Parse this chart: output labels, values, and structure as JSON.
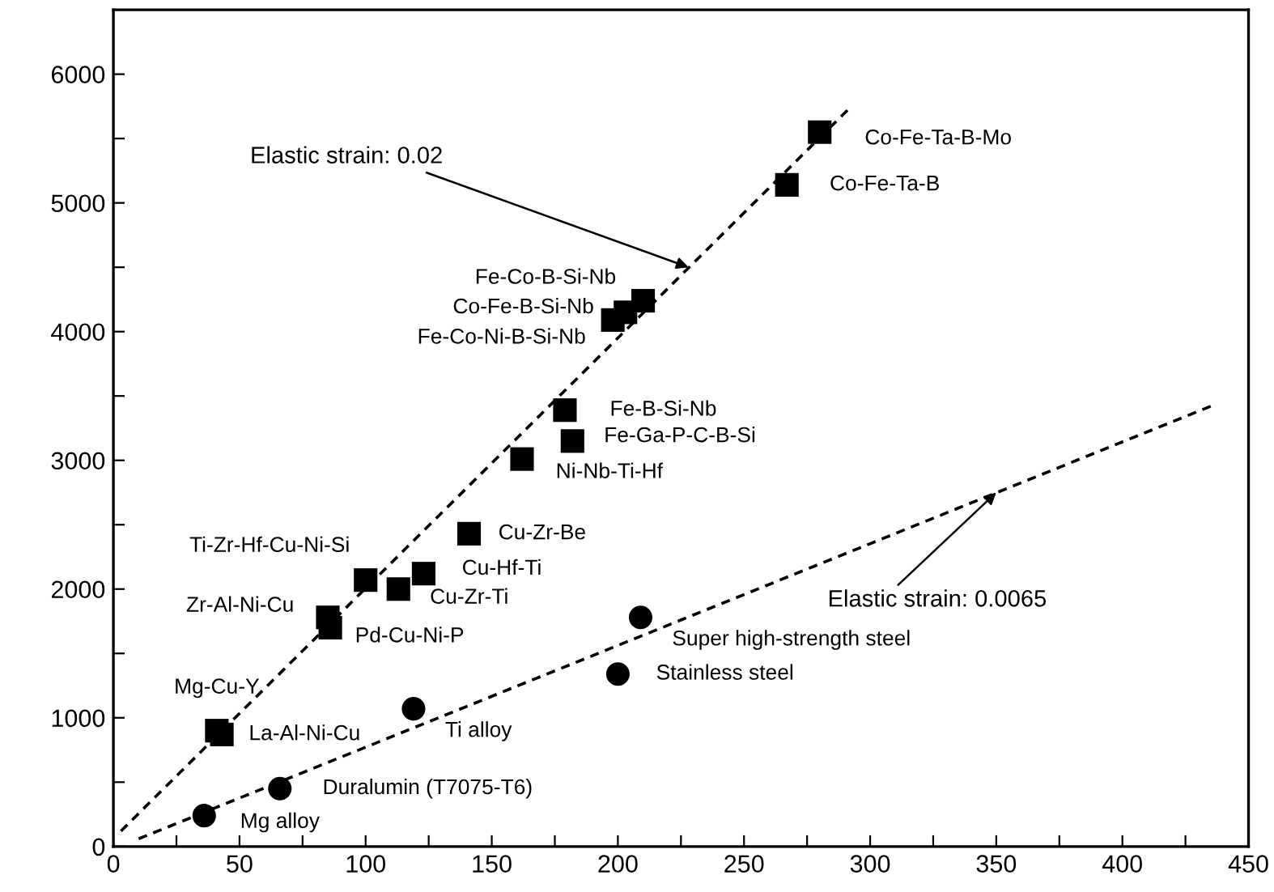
{
  "chart_data": {
    "type": "scatter",
    "xlim": [
      0,
      450
    ],
    "ylim": [
      0,
      6500
    ],
    "xticks": [
      0,
      {
        "value": 25,
        "label": null
      },
      50,
      {
        "value": 75,
        "label": null
      },
      100,
      {
        "value": 125,
        "label": null
      },
      150,
      {
        "value": 175,
        "label": null
      },
      200,
      {
        "value": 225,
        "label": null
      },
      250,
      {
        "value": 275,
        "label": null
      },
      300,
      {
        "value": 325,
        "label": null
      },
      350,
      {
        "value": 375,
        "label": null
      },
      400,
      {
        "value": 425,
        "label": null
      },
      450
    ],
    "yticks": [
      0,
      {
        "value": 500,
        "label": null
      },
      1000,
      {
        "value": 1500,
        "label": null
      },
      2000,
      {
        "value": 2500,
        "label": null
      },
      3000,
      {
        "value": 3500,
        "label": null
      },
      4000,
      {
        "value": 4500,
        "label": null
      },
      5000,
      {
        "value": 5500,
        "label": null
      },
      6000
    ],
    "grid": false,
    "legend": false,
    "series": [
      {
        "marker": "square",
        "color": "#000000",
        "x": [
          280,
          267,
          210,
          203,
          198,
          179,
          182,
          162,
          141,
          100,
          123,
          113,
          85,
          86,
          41,
          43
        ],
        "values": [
          5550,
          5140,
          4240,
          4150,
          4090,
          3390,
          3150,
          3010,
          2430,
          2070,
          2120,
          2000,
          1780,
          1700,
          900,
          870
        ],
        "value_labels": [
          "Co-Fe-Ta-B-Mo",
          "Co-Fe-Ta-B",
          "Fe-Co-B-Si-Nb",
          "Co-Fe-B-Si-Nb",
          "Fe-Co-Ni-B-Si-Nb",
          "Fe-B-Si-Nb",
          "Fe-Ga-P-C-B-Si",
          "Ni-Nb-Ti-Hf",
          "Cu-Zr-Be",
          "Ti-Zr-Hf-Cu-Ni-Si",
          "Cu-Hf-Ti",
          "Cu-Zr-Ti",
          "Zr-Al-Ni-Cu",
          "Pd-Cu-Ni-P",
          "Mg-Cu-Y",
          "La-Al-Ni-Cu"
        ]
      },
      {
        "marker": "circle",
        "color": "#000000",
        "x": [
          36,
          66,
          119,
          200,
          209
        ],
        "values": [
          240,
          450,
          1070,
          1340,
          1780
        ],
        "value_labels": [
          "Mg alloy",
          "Duralumin (T7075-T6)",
          "Ti alloy",
          "Stainless steel",
          "Super high-strength steel"
        ]
      },
      {
        "type": "line",
        "line_style": "dashed",
        "color": "#000000",
        "x": [
          3,
          291
        ],
        "values": [
          120,
          5720
        ]
      },
      {
        "type": "line",
        "line_style": "dashed",
        "color": "#000000",
        "x": [
          10,
          435
        ],
        "values": [
          60,
          3420
        ]
      }
    ],
    "annotations": [
      {
        "text": "Elastic strain: 0.02",
        "x": 228,
        "y": 4500
      },
      {
        "text": "Elastic strain: 0.0065",
        "x": 350,
        "y": 2750
      }
    ]
  }
}
